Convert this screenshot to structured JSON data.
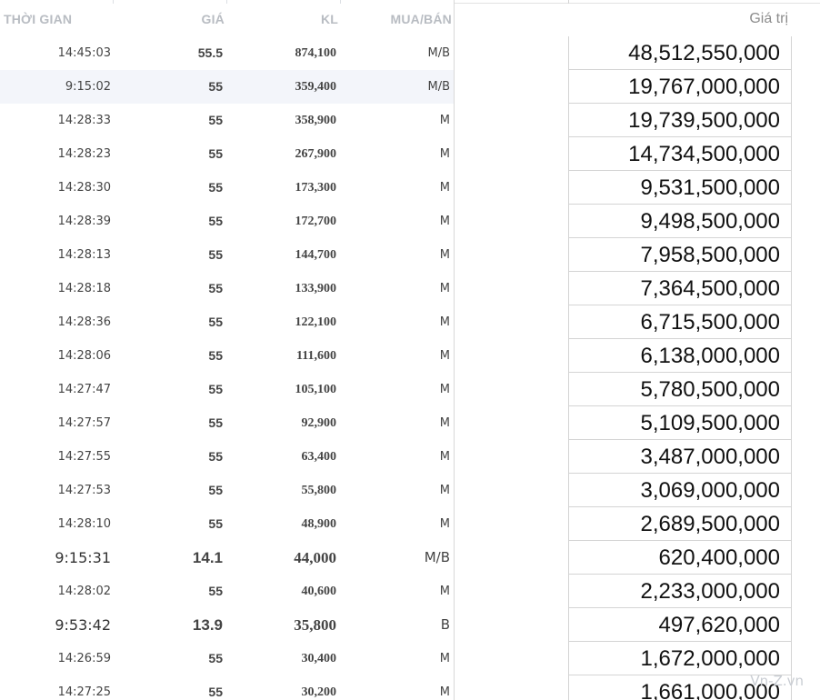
{
  "trade_table": {
    "headers": {
      "time": "THỜI GIAN",
      "price": "GIÁ",
      "volume": "KL",
      "side": "MUA/BÁN"
    },
    "rows": [
      {
        "time": "14:45:03",
        "price": "55.5",
        "volume": "874,100",
        "side": "M/B",
        "alt": false,
        "big": false
      },
      {
        "time": "9:15:02",
        "price": "55",
        "volume": "359,400",
        "side": "M/B",
        "alt": true,
        "big": false
      },
      {
        "time": "14:28:33",
        "price": "55",
        "volume": "358,900",
        "side": "M",
        "alt": false,
        "big": false
      },
      {
        "time": "14:28:23",
        "price": "55",
        "volume": "267,900",
        "side": "M",
        "alt": false,
        "big": false
      },
      {
        "time": "14:28:30",
        "price": "55",
        "volume": "173,300",
        "side": "M",
        "alt": false,
        "big": false
      },
      {
        "time": "14:28:39",
        "price": "55",
        "volume": "172,700",
        "side": "M",
        "alt": false,
        "big": false
      },
      {
        "time": "14:28:13",
        "price": "55",
        "volume": "144,700",
        "side": "M",
        "alt": false,
        "big": false
      },
      {
        "time": "14:28:18",
        "price": "55",
        "volume": "133,900",
        "side": "M",
        "alt": false,
        "big": false
      },
      {
        "time": "14:28:36",
        "price": "55",
        "volume": "122,100",
        "side": "M",
        "alt": false,
        "big": false
      },
      {
        "time": "14:28:06",
        "price": "55",
        "volume": "111,600",
        "side": "M",
        "alt": false,
        "big": false
      },
      {
        "time": "14:27:47",
        "price": "55",
        "volume": "105,100",
        "side": "M",
        "alt": false,
        "big": false
      },
      {
        "time": "14:27:57",
        "price": "55",
        "volume": "92,900",
        "side": "M",
        "alt": false,
        "big": false
      },
      {
        "time": "14:27:55",
        "price": "55",
        "volume": "63,400",
        "side": "M",
        "alt": false,
        "big": false
      },
      {
        "time": "14:27:53",
        "price": "55",
        "volume": "55,800",
        "side": "M",
        "alt": false,
        "big": false
      },
      {
        "time": "14:28:10",
        "price": "55",
        "volume": "48,900",
        "side": "M",
        "alt": false,
        "big": false
      },
      {
        "time": "9:15:31",
        "price": "14.1",
        "volume": "44,000",
        "side": "M/B",
        "alt": false,
        "big": true
      },
      {
        "time": "14:28:02",
        "price": "55",
        "volume": "40,600",
        "side": "M",
        "alt": false,
        "big": false
      },
      {
        "time": "9:53:42",
        "price": "13.9",
        "volume": "35,800",
        "side": "B",
        "alt": false,
        "big": true
      },
      {
        "time": "14:26:59",
        "price": "55",
        "volume": "30,400",
        "side": "M",
        "alt": false,
        "big": false
      },
      {
        "time": "14:27:25",
        "price": "55",
        "volume": "30,200",
        "side": "M",
        "alt": false,
        "big": false
      }
    ]
  },
  "value_sheet": {
    "header": "Giá trị",
    "values": [
      "48,512,550,000",
      "19,767,000,000",
      "19,739,500,000",
      "14,734,500,000",
      "9,531,500,000",
      "9,498,500,000",
      "7,958,500,000",
      "7,364,500,000",
      "6,715,500,000",
      "6,138,000,000",
      "5,780,500,000",
      "5,109,500,000",
      "3,487,000,000",
      "3,069,000,000",
      "2,689,500,000",
      "620,400,000",
      "2,233,000,000",
      "497,620,000",
      "1,672,000,000",
      "1,661,000,000"
    ]
  },
  "watermark": "Vn-Z.vn"
}
